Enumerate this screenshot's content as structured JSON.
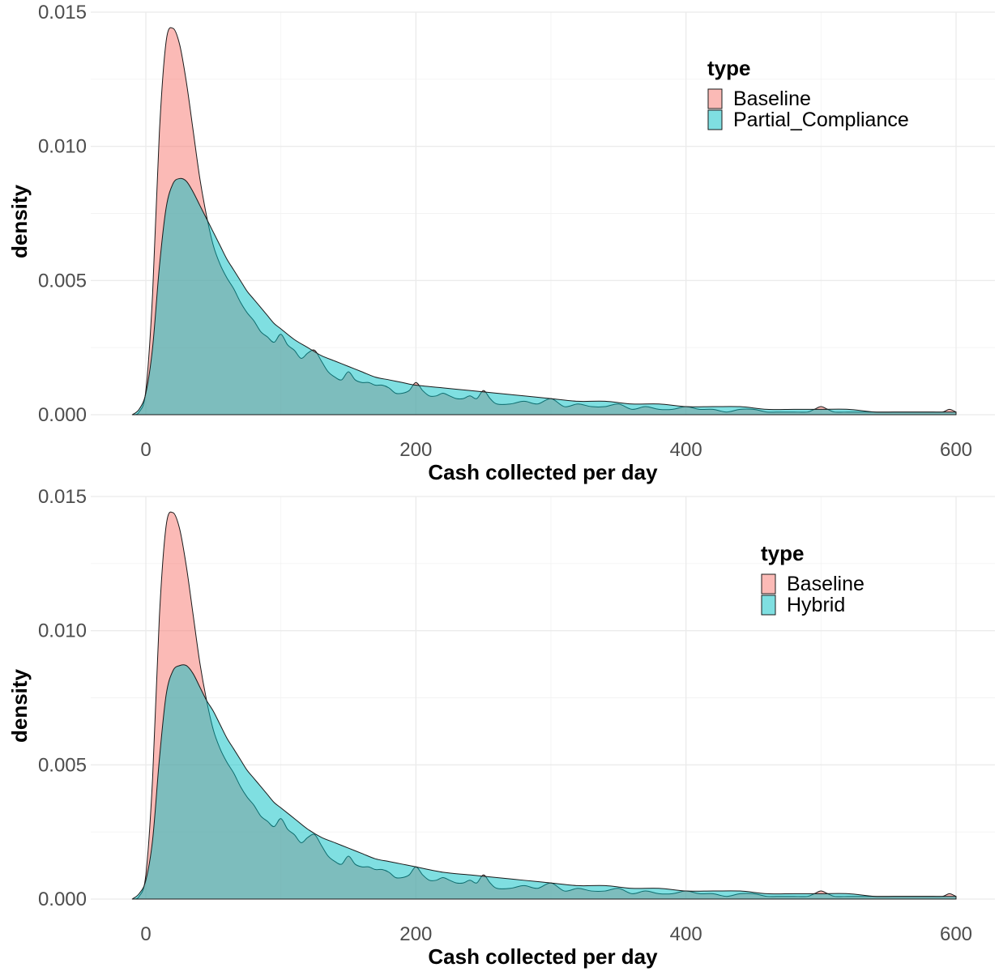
{
  "chart_data": [
    {
      "type": "area",
      "subtype": "density",
      "title": "",
      "xlabel": "Cash collected per day",
      "ylabel": "density",
      "xlim": [
        -10,
        600
      ],
      "ylim": [
        0,
        0.015
      ],
      "x_ticks": [
        "0",
        "200",
        "400",
        "600"
      ],
      "y_ticks": [
        "0.000",
        "0.005",
        "0.010",
        "0.015"
      ],
      "grid": true,
      "legend": {
        "title": "type",
        "position": "top-right"
      },
      "series": [
        {
          "name": "Baseline",
          "color": "#F8766D",
          "x": [
            -10,
            -5,
            0,
            5,
            10,
            15,
            20,
            25,
            30,
            35,
            40,
            45,
            50,
            55,
            60,
            65,
            70,
            75,
            80,
            85,
            90,
            95,
            100,
            105,
            110,
            115,
            120,
            125,
            130,
            135,
            140,
            145,
            150,
            155,
            160,
            165,
            170,
            175,
            180,
            185,
            190,
            195,
            200,
            205,
            210,
            215,
            220,
            225,
            230,
            235,
            240,
            245,
            250,
            255,
            260,
            270,
            280,
            290,
            300,
            310,
            320,
            330,
            340,
            350,
            360,
            370,
            380,
            390,
            400,
            410,
            420,
            430,
            440,
            450,
            460,
            470,
            480,
            490,
            495,
            500,
            505,
            510,
            520,
            530,
            540,
            550,
            560,
            570,
            580,
            590,
            595,
            600
          ],
          "y": [
            0,
            0.0001,
            0.0009,
            0.0045,
            0.0105,
            0.0139,
            0.0144,
            0.0138,
            0.0124,
            0.0106,
            0.0088,
            0.0074,
            0.0063,
            0.0056,
            0.0051,
            0.0047,
            0.0042,
            0.0038,
            0.0035,
            0.0031,
            0.0029,
            0.0027,
            0.003,
            0.0026,
            0.0024,
            0.0021,
            0.0023,
            0.0024,
            0.002,
            0.0016,
            0.0014,
            0.0013,
            0.0016,
            0.0013,
            0.0012,
            0.0012,
            0.0011,
            0.0011,
            0.001,
            0.0008,
            0.0008,
            0.0009,
            0.0012,
            0.0009,
            0.0007,
            0.0007,
            0.0008,
            0.0007,
            0.0006,
            0.0006,
            0.0007,
            0.0006,
            0.0009,
            0.0006,
            0.0004,
            0.0004,
            0.0005,
            0.0004,
            0.0006,
            0.0003,
            0.0004,
            0.0003,
            0.0003,
            0.0004,
            0.0002,
            0.0003,
            0.0002,
            0.0002,
            0.0003,
            0.0002,
            0.0002,
            0.0001,
            0.0002,
            0.0002,
            0.0001,
            0.0001,
            0.0001,
            0.0001,
            0.0002,
            0.0003,
            0.0002,
            0.0001,
            0.0001,
            0.0001,
            0.0001,
            0.0001,
            0.0001,
            0.0001,
            0.0001,
            0.0001,
            0.0002,
            0.0001
          ]
        },
        {
          "name": "Partial_Compliance",
          "color": "#00BFC4",
          "x": [
            -10,
            -5,
            0,
            5,
            10,
            15,
            20,
            25,
            30,
            35,
            40,
            45,
            50,
            55,
            60,
            65,
            70,
            75,
            80,
            85,
            90,
            95,
            100,
            110,
            120,
            130,
            140,
            150,
            160,
            170,
            180,
            190,
            200,
            220,
            240,
            260,
            280,
            300,
            320,
            340,
            360,
            380,
            400,
            420,
            440,
            460,
            480,
            500,
            520,
            540,
            560,
            580,
            600
          ],
          "y": [
            0,
            0.0002,
            0.0008,
            0.0025,
            0.0055,
            0.0077,
            0.0086,
            0.0088,
            0.0087,
            0.0083,
            0.0078,
            0.0073,
            0.0068,
            0.0063,
            0.0058,
            0.0054,
            0.005,
            0.0046,
            0.0043,
            0.004,
            0.0037,
            0.0034,
            0.0032,
            0.0028,
            0.0025,
            0.0022,
            0.002,
            0.0018,
            0.0016,
            0.0014,
            0.0013,
            0.0012,
            0.0011,
            0.001,
            0.0009,
            0.0008,
            0.0007,
            0.0006,
            0.0005,
            0.0005,
            0.0004,
            0.0004,
            0.0003,
            0.0003,
            0.0003,
            0.0002,
            0.0002,
            0.0002,
            0.0002,
            0.0001,
            0.0001,
            0.0001,
            0.0001
          ]
        }
      ]
    },
    {
      "type": "area",
      "subtype": "density",
      "title": "",
      "xlabel": "Cash collected per day",
      "ylabel": "density",
      "xlim": [
        -10,
        600
      ],
      "ylim": [
        0,
        0.015
      ],
      "x_ticks": [
        "0",
        "200",
        "400",
        "600"
      ],
      "y_ticks": [
        "0.000",
        "0.005",
        "0.010",
        "0.015"
      ],
      "grid": true,
      "legend": {
        "title": "type",
        "position": "top-right"
      },
      "series": [
        {
          "name": "Baseline",
          "color": "#F8766D",
          "x": [
            -10,
            -5,
            0,
            5,
            10,
            15,
            20,
            25,
            30,
            35,
            40,
            45,
            50,
            55,
            60,
            65,
            70,
            75,
            80,
            85,
            90,
            95,
            100,
            105,
            110,
            115,
            120,
            125,
            130,
            135,
            140,
            145,
            150,
            155,
            160,
            165,
            170,
            175,
            180,
            185,
            190,
            195,
            200,
            205,
            210,
            215,
            220,
            225,
            230,
            235,
            240,
            245,
            250,
            255,
            260,
            270,
            280,
            290,
            300,
            310,
            320,
            330,
            340,
            350,
            360,
            370,
            380,
            390,
            400,
            410,
            420,
            430,
            440,
            450,
            460,
            470,
            480,
            490,
            495,
            500,
            505,
            510,
            520,
            530,
            540,
            550,
            560,
            570,
            580,
            590,
            595,
            600
          ],
          "y": [
            0,
            0.0001,
            0.0009,
            0.0045,
            0.0105,
            0.0139,
            0.0144,
            0.0138,
            0.0124,
            0.0106,
            0.0088,
            0.0074,
            0.0063,
            0.0056,
            0.0051,
            0.0047,
            0.0042,
            0.0038,
            0.0035,
            0.0031,
            0.0029,
            0.0027,
            0.003,
            0.0026,
            0.0024,
            0.0021,
            0.0023,
            0.0024,
            0.002,
            0.0016,
            0.0014,
            0.0013,
            0.0016,
            0.0013,
            0.0012,
            0.0012,
            0.0011,
            0.0011,
            0.001,
            0.0008,
            0.0008,
            0.0009,
            0.0012,
            0.0009,
            0.0007,
            0.0007,
            0.0008,
            0.0007,
            0.0006,
            0.0006,
            0.0007,
            0.0006,
            0.0009,
            0.0006,
            0.0004,
            0.0004,
            0.0005,
            0.0004,
            0.0006,
            0.0003,
            0.0004,
            0.0003,
            0.0003,
            0.0004,
            0.0002,
            0.0003,
            0.0002,
            0.0002,
            0.0003,
            0.0002,
            0.0002,
            0.0001,
            0.0002,
            0.0002,
            0.0001,
            0.0001,
            0.0001,
            0.0001,
            0.0002,
            0.0003,
            0.0002,
            0.0001,
            0.0001,
            0.0001,
            0.0001,
            0.0001,
            0.0001,
            0.0001,
            0.0001,
            0.0001,
            0.0002,
            0.0001
          ]
        },
        {
          "name": "Hybrid",
          "color": "#00BFC4",
          "x": [
            -10,
            -5,
            0,
            5,
            10,
            15,
            20,
            25,
            30,
            35,
            40,
            45,
            50,
            55,
            60,
            65,
            70,
            75,
            80,
            85,
            90,
            95,
            100,
            110,
            120,
            130,
            140,
            150,
            160,
            170,
            180,
            190,
            200,
            220,
            240,
            260,
            280,
            300,
            320,
            340,
            360,
            380,
            400,
            420,
            440,
            460,
            480,
            500,
            520,
            540,
            560,
            580,
            600
          ],
          "y": [
            0,
            0.0002,
            0.0007,
            0.0022,
            0.0052,
            0.0076,
            0.0085,
            0.0087,
            0.0087,
            0.0084,
            0.0079,
            0.0074,
            0.007,
            0.0065,
            0.006,
            0.0056,
            0.0052,
            0.0048,
            0.0045,
            0.0042,
            0.0039,
            0.0036,
            0.0034,
            0.003,
            0.0026,
            0.0023,
            0.0021,
            0.0019,
            0.0017,
            0.0015,
            0.0014,
            0.0013,
            0.0012,
            0.001,
            0.0009,
            0.0008,
            0.0007,
            0.0006,
            0.0005,
            0.0005,
            0.0004,
            0.0004,
            0.0003,
            0.0003,
            0.0003,
            0.0002,
            0.0002,
            0.0002,
            0.0002,
            0.0001,
            0.0001,
            0.0001,
            0.0001
          ]
        }
      ]
    }
  ]
}
